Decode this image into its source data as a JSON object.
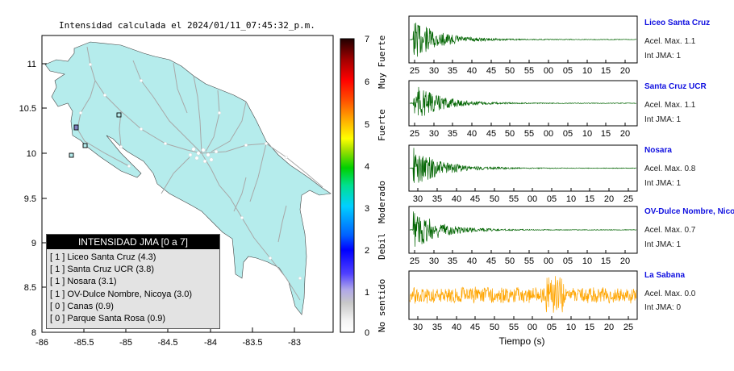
{
  "map": {
    "title": "Intensidad calculada el 2024/01/11_07:45:32_p.m.",
    "lon_ticks": [
      "-86",
      "-85.5",
      "-85",
      "-84.5",
      "-84",
      "-83.5",
      "-83"
    ],
    "lat_ticks": [
      "11",
      "10.5",
      "10",
      "9.5",
      "9",
      "8.5",
      "8"
    ],
    "land_color": "#b5ecec"
  },
  "colorbar": {
    "ticks": [
      "0",
      "1",
      "2",
      "3",
      "4",
      "5",
      "6",
      "7"
    ],
    "labels": [
      "No sentido",
      "Debil",
      "Moderado",
      "Fuerte",
      "Muy Fuerte"
    ]
  },
  "legend": {
    "title": "INTENSIDAD JMA [0 a 7]",
    "items": [
      "[ 1 ]  Liceo Santa Cruz (4.3)",
      "[ 1 ]  Santa Cruz UCR (3.8)",
      "[ 1 ]  Nosara (3.1)",
      "[ 1 ]  OV-Dulce Nombre, Nicoya (3.0)",
      "[ 0 ]  Canas (0.9)",
      "[ 0 ]  Parque Santa Rosa (0.9)"
    ]
  },
  "waveforms": {
    "xlabel": "Tiempo (s)",
    "stations": [
      {
        "name": "Liceo Santa Cruz",
        "accel": "Acel. Max. 1.1",
        "jma": "Int JMA: 1",
        "color": "#006400",
        "ticks": [
          "25",
          "30",
          "35",
          "40",
          "45",
          "50",
          "55",
          "00",
          "05",
          "10",
          "15",
          "20"
        ]
      },
      {
        "name": "Santa Cruz UCR",
        "accel": "Acel. Max. 1.1",
        "jma": "Int JMA: 1",
        "color": "#006400",
        "ticks": [
          "25",
          "30",
          "35",
          "40",
          "45",
          "50",
          "55",
          "00",
          "05",
          "10",
          "15",
          "20"
        ]
      },
      {
        "name": "Nosara",
        "accel": "Acel. Max. 0.8",
        "jma": "Int JMA: 1",
        "color": "#006400",
        "ticks": [
          "30",
          "35",
          "40",
          "45",
          "50",
          "55",
          "00",
          "05",
          "10",
          "15",
          "20",
          "25"
        ]
      },
      {
        "name": "OV-Dulce Nombre, Nicoya",
        "accel": "Acel. Max. 0.7",
        "jma": "Int JMA: 1",
        "color": "#006400",
        "ticks": [
          "25",
          "30",
          "35",
          "40",
          "45",
          "50",
          "55",
          "00",
          "05",
          "10",
          "15",
          "20"
        ]
      },
      {
        "name": "La Sabana",
        "accel": "Acel. Max. 0.0",
        "jma": "Int JMA: 0",
        "color": "#ffa500",
        "ticks": [
          "30",
          "35",
          "40",
          "45",
          "50",
          "55",
          "00",
          "05",
          "10",
          "15",
          "20",
          "25"
        ]
      }
    ]
  },
  "chart_data": [
    {
      "type": "map",
      "title": "Intensidad calculada el 2024/01/11_07:45:32_p.m.",
      "xlim": [
        -86,
        -82.55
      ],
      "ylim": [
        8,
        11.3
      ],
      "stations_marked": [
        {
          "lon": -85.55,
          "lat": 10.29
        },
        {
          "lon": -84.98,
          "lat": 10.41
        },
        {
          "lon": -85.45,
          "lat": 10.08
        },
        {
          "lon": -85.62,
          "lat": 9.98
        }
      ]
    },
    {
      "type": "line",
      "xlabel": "Tiempo (s)",
      "series": [
        {
          "name": "Liceo Santa Cruz",
          "peak": 1.1
        },
        {
          "name": "Santa Cruz UCR",
          "peak": 1.1
        },
        {
          "name": "Nosara",
          "peak": 0.8
        },
        {
          "name": "OV-Dulce Nombre, Nicoya",
          "peak": 0.7
        },
        {
          "name": "La Sabana",
          "peak": 0.0
        }
      ]
    }
  ]
}
